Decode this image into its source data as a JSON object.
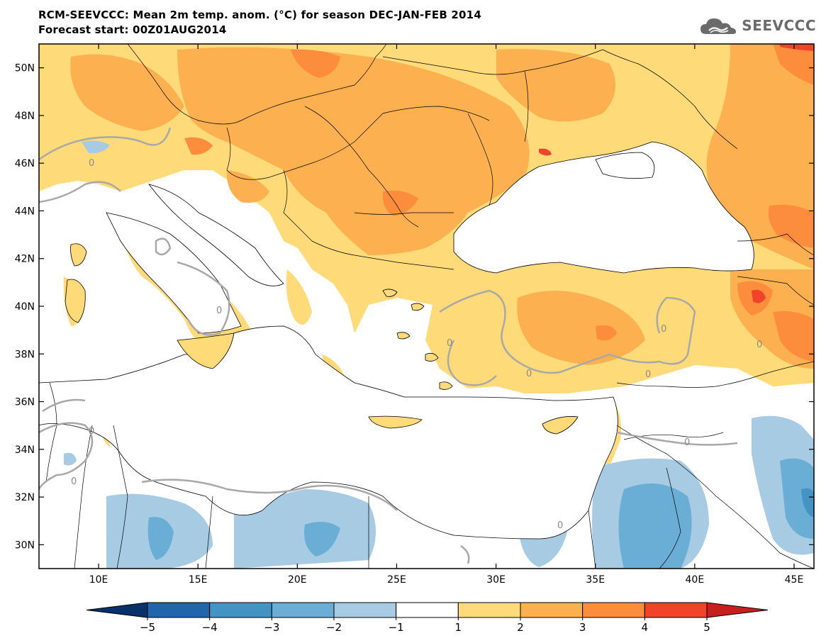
{
  "title_line1": "RCM-SEEVCCC: Mean 2m temp. anom. (°C) for season DEC-JAN-FEB 2014",
  "title_line2": "Forecast start: 00Z01AUG2014",
  "logo": {
    "text": "SEEVCCC",
    "icon": "cloud-logo-icon"
  },
  "map": {
    "lon_range": [
      7,
      46
    ],
    "lat_range": [
      29,
      51
    ],
    "lon_ticks": [
      {
        "value": 10,
        "label": "10E"
      },
      {
        "value": 15,
        "label": "15E"
      },
      {
        "value": 20,
        "label": "20E"
      },
      {
        "value": 25,
        "label": "25E"
      },
      {
        "value": 30,
        "label": "30E"
      },
      {
        "value": 35,
        "label": "35E"
      },
      {
        "value": 40,
        "label": "40E"
      },
      {
        "value": 45,
        "label": "45E"
      }
    ],
    "lat_ticks": [
      {
        "value": 30,
        "label": "30N"
      },
      {
        "value": 32,
        "label": "32N"
      },
      {
        "value": 34,
        "label": "34N"
      },
      {
        "value": 36,
        "label": "36N"
      },
      {
        "value": 38,
        "label": "38N"
      },
      {
        "value": 40,
        "label": "40N"
      },
      {
        "value": 42,
        "label": "42N"
      },
      {
        "value": 44,
        "label": "44N"
      },
      {
        "value": 46,
        "label": "46N"
      },
      {
        "value": 48,
        "label": "48N"
      },
      {
        "value": 50,
        "label": "50N"
      }
    ],
    "zero_contour_label": "0"
  },
  "colorbar": {
    "labels": [
      "-5",
      "-4",
      "-3",
      "-2",
      "-1",
      "1",
      "2",
      "3",
      "4",
      "5"
    ],
    "colors": [
      "#08306b",
      "#2166ac",
      "#4393c3",
      "#6aaed6",
      "#a6cbe3",
      "#ffffff",
      "#fedb78",
      "#fdb050",
      "#fc8d3c",
      "#f0432a",
      "#c81e1e"
    ]
  }
}
